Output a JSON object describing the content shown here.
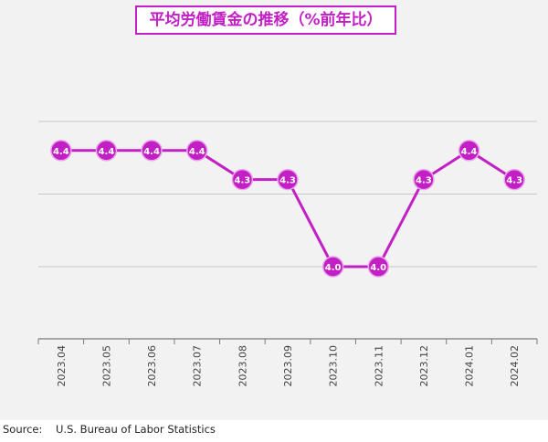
{
  "chart_data": {
    "type": "line",
    "title": "平均労働賃金の推移（%前年比）",
    "categories": [
      "2023.04",
      "2023.05",
      "2023.06",
      "2023.07",
      "2023.08",
      "2023.09",
      "2023.10",
      "2023.11",
      "2023.12",
      "2024.01",
      "2024.02"
    ],
    "series": [
      {
        "values": [
          4.4,
          4.4,
          4.4,
          4.4,
          4.3,
          4.3,
          4.0,
          4.0,
          4.3,
          4.4,
          4.3
        ]
      }
    ],
    "data_labels": [
      "4.4",
      "4.4",
      "4.4",
      "4.4",
      "4.3",
      "4.3",
      "4.0",
      "4.0",
      "4.3",
      "4.4",
      "4.3"
    ],
    "ylim": [
      3.8,
      4.5
    ],
    "gridlines_at": [
      4.0,
      4.25,
      4.5
    ],
    "grid": true,
    "color": "#c21fc5"
  },
  "source": {
    "label": "Source:",
    "text": "U.S. Bureau of Labor Statistics"
  }
}
